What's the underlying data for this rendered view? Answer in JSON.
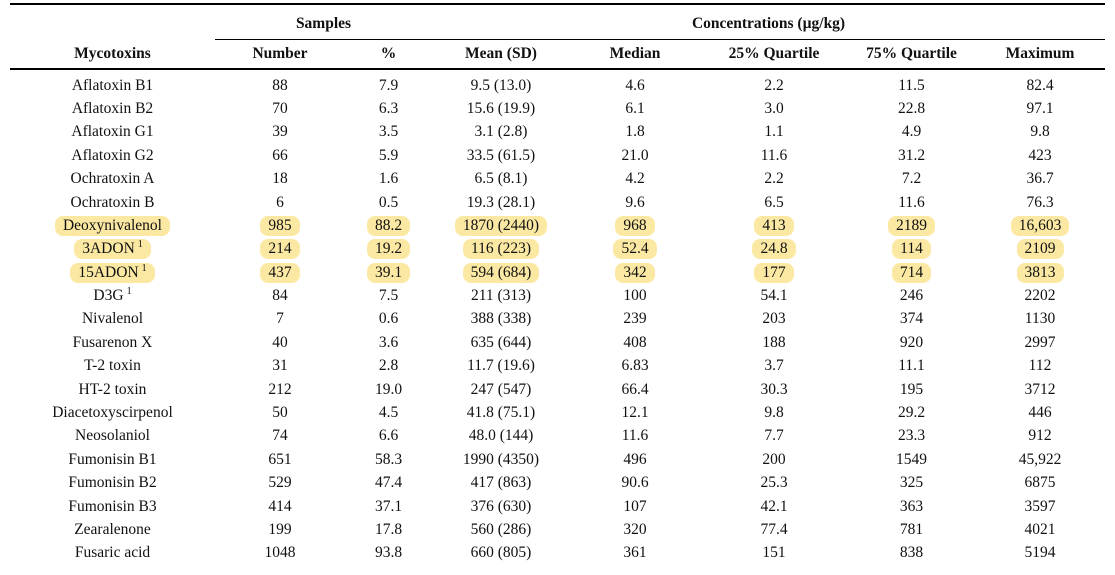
{
  "page": {
    "background": "#ffffff",
    "text_color": "#111111"
  },
  "table": {
    "highlight_color": "#fbe9a3",
    "groups": {
      "samples": {
        "label": "Samples",
        "span": 2
      },
      "concentrations": {
        "label": "Concentrations (µg/kg)",
        "span": 5
      }
    },
    "columns": [
      "Mycotoxins",
      "Number",
      "%",
      "Mean (SD)",
      "Median",
      "25% Quartile",
      "75% Quartile",
      "Maximum"
    ],
    "rows": [
      {
        "name": "Aflatoxin B1",
        "sup": null,
        "highlighted": false,
        "values": [
          "88",
          "7.9",
          "9.5 (13.0)",
          "4.6",
          "2.2",
          "11.5",
          "82.4"
        ]
      },
      {
        "name": "Aflatoxin B2",
        "sup": null,
        "highlighted": false,
        "values": [
          "70",
          "6.3",
          "15.6 (19.9)",
          "6.1",
          "3.0",
          "22.8",
          "97.1"
        ]
      },
      {
        "name": "Aflatoxin G1",
        "sup": null,
        "highlighted": false,
        "values": [
          "39",
          "3.5",
          "3.1 (2.8)",
          "1.8",
          "1.1",
          "4.9",
          "9.8"
        ]
      },
      {
        "name": "Aflatoxin G2",
        "sup": null,
        "highlighted": false,
        "values": [
          "66",
          "5.9",
          "33.5 (61.5)",
          "21.0",
          "11.6",
          "31.2",
          "423"
        ]
      },
      {
        "name": "Ochratoxin A",
        "sup": null,
        "highlighted": false,
        "values": [
          "18",
          "1.6",
          "6.5 (8.1)",
          "4.2",
          "2.2",
          "7.2",
          "36.7"
        ]
      },
      {
        "name": "Ochratoxin B",
        "sup": null,
        "highlighted": false,
        "values": [
          "6",
          "0.5",
          "19.3 (28.1)",
          "9.6",
          "6.5",
          "11.6",
          "76.3"
        ]
      },
      {
        "name": "Deoxynivalenol",
        "sup": null,
        "highlighted": true,
        "values": [
          "985",
          "88.2",
          "1870 (2440)",
          "968",
          "413",
          "2189",
          "16,603"
        ]
      },
      {
        "name": "3ADON",
        "sup": "1",
        "highlighted": true,
        "values": [
          "214",
          "19.2",
          "116 (223)",
          "52.4",
          "24.8",
          "114",
          "2109"
        ]
      },
      {
        "name": "15ADON",
        "sup": "1",
        "highlighted": true,
        "values": [
          "437",
          "39.1",
          "594 (684)",
          "342",
          "177",
          "714",
          "3813"
        ]
      },
      {
        "name": "D3G",
        "sup": "1",
        "highlighted": false,
        "values": [
          "84",
          "7.5",
          "211 (313)",
          "100",
          "54.1",
          "246",
          "2202"
        ]
      },
      {
        "name": "Nivalenol",
        "sup": null,
        "highlighted": false,
        "values": [
          "7",
          "0.6",
          "388 (338)",
          "239",
          "203",
          "374",
          "1130"
        ]
      },
      {
        "name": "Fusarenon X",
        "sup": null,
        "highlighted": false,
        "values": [
          "40",
          "3.6",
          "635 (644)",
          "408",
          "188",
          "920",
          "2997"
        ]
      },
      {
        "name": "T-2 toxin",
        "sup": null,
        "highlighted": false,
        "values": [
          "31",
          "2.8",
          "11.7 (19.6)",
          "6.83",
          "3.7",
          "11.1",
          "112"
        ]
      },
      {
        "name": "HT-2 toxin",
        "sup": null,
        "highlighted": false,
        "values": [
          "212",
          "19.0",
          "247 (547)",
          "66.4",
          "30.3",
          "195",
          "3712"
        ]
      },
      {
        "name": "Diacetoxyscirpenol",
        "sup": null,
        "highlighted": false,
        "values": [
          "50",
          "4.5",
          "41.8 (75.1)",
          "12.1",
          "9.8",
          "29.2",
          "446"
        ]
      },
      {
        "name": "Neosolaniol",
        "sup": null,
        "highlighted": false,
        "values": [
          "74",
          "6.6",
          "48.0 (144)",
          "11.6",
          "7.7",
          "23.3",
          "912"
        ]
      },
      {
        "name": "Fumonisin B1",
        "sup": null,
        "highlighted": false,
        "values": [
          "651",
          "58.3",
          "1990 (4350)",
          "496",
          "200",
          "1549",
          "45,922"
        ]
      },
      {
        "name": "Fumonisin B2",
        "sup": null,
        "highlighted": false,
        "values": [
          "529",
          "47.4",
          "417 (863)",
          "90.6",
          "25.3",
          "325",
          "6875"
        ]
      },
      {
        "name": "Fumonisin B3",
        "sup": null,
        "highlighted": false,
        "values": [
          "414",
          "37.1",
          "376 (630)",
          "107",
          "42.1",
          "363",
          "3597"
        ]
      },
      {
        "name": "Zearalenone",
        "sup": null,
        "highlighted": false,
        "values": [
          "199",
          "17.8",
          "560 (286)",
          "320",
          "77.4",
          "781",
          "4021"
        ]
      },
      {
        "name": "Fusaric acid",
        "sup": null,
        "highlighted": false,
        "values": [
          "1048",
          "93.8",
          "660 (805)",
          "361",
          "151",
          "838",
          "5194"
        ]
      }
    ]
  }
}
